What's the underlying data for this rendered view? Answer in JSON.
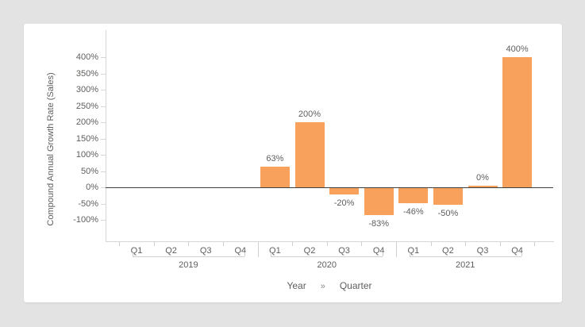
{
  "theme": {
    "page_background": "#e3e3e3",
    "card_background": "#ffffff",
    "bar_color": "#f8a15d",
    "text_color": "#605e5c",
    "zero_line_color": "#3f3f3f",
    "axis_border_color": "#d6d6d6"
  },
  "chart_data": {
    "type": "bar",
    "title": "",
    "ylabel": "Compound Annual Growth Rate (Sales)",
    "xlabel": "",
    "hierarchy": [
      "Year",
      "»",
      "Quarter"
    ],
    "legend": "none",
    "grid": false,
    "ylim": [
      -100,
      400
    ],
    "y_tick_step": 50,
    "y_ticks": [
      {
        "label": "400%",
        "value": 400
      },
      {
        "label": "350%",
        "value": 350
      },
      {
        "label": "300%",
        "value": 300
      },
      {
        "label": "250%",
        "value": 250
      },
      {
        "label": "200%",
        "value": 200
      },
      {
        "label": "150%",
        "value": 150
      },
      {
        "label": "100%",
        "value": 100
      },
      {
        "label": "50%",
        "value": 50
      },
      {
        "label": "0%",
        "value": 0
      },
      {
        "label": "-50%",
        "value": -50
      },
      {
        "label": "-100%",
        "value": -100
      }
    ],
    "groups": [
      {
        "year": "2019",
        "quarters": [
          {
            "label": "Q1",
            "value": null,
            "display": ""
          },
          {
            "label": "Q2",
            "value": null,
            "display": ""
          },
          {
            "label": "Q3",
            "value": null,
            "display": ""
          },
          {
            "label": "Q4",
            "value": null,
            "display": ""
          }
        ]
      },
      {
        "year": "2020",
        "quarters": [
          {
            "label": "Q1",
            "value": 63,
            "display": "63%"
          },
          {
            "label": "Q2",
            "value": 200,
            "display": "200%"
          },
          {
            "label": "Q3",
            "value": -20,
            "display": "-20%"
          },
          {
            "label": "Q4",
            "value": -83,
            "display": "-83%"
          }
        ]
      },
      {
        "year": "2021",
        "quarters": [
          {
            "label": "Q1",
            "value": -46,
            "display": "-46%"
          },
          {
            "label": "Q2",
            "value": -50,
            "display": "-50%"
          },
          {
            "label": "Q3",
            "value": 0,
            "display": "0%"
          },
          {
            "label": "Q4",
            "value": 400,
            "display": "400%"
          }
        ]
      }
    ]
  }
}
